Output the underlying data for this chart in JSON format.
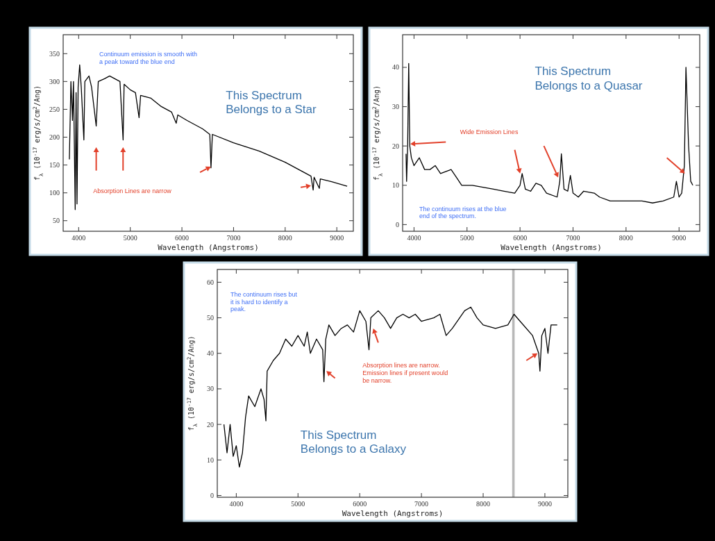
{
  "chart_data": [
    {
      "type": "line",
      "xlabel": "Wavelength (Angstroms)",
      "ylabel": "f$_{λ}$ (10$^{-17}$ erg/s/cm$^{2}$/Ang)",
      "xlim": [
        3700,
        9320
      ],
      "ylim": [
        31,
        384
      ],
      "xticks": [
        4000,
        5000,
        6000,
        7000,
        8000,
        9000
      ],
      "yticks": [
        50,
        100,
        150,
        200,
        250,
        300,
        350
      ],
      "x": [
        3820,
        3850,
        3880,
        3900,
        3933,
        3950,
        3968,
        3990,
        4020,
        4050,
        4101,
        4120,
        4200,
        4250,
        4340,
        4380,
        4500,
        4600,
        4700,
        4800,
        4861,
        4880,
        5000,
        5100,
        5170,
        5200,
        5400,
        5600,
        5800,
        5890,
        5920,
        6100,
        6400,
        6540,
        6563,
        6590,
        7000,
        7500,
        8000,
        8300,
        8500,
        8542,
        8560,
        8662,
        8680,
        8900,
        9200
      ],
      "series": [
        {
          "color": "#000000",
          "values": [
            160,
            300,
            230,
            300,
            70,
            280,
            80,
            290,
            330,
            290,
            195,
            300,
            310,
            290,
            220,
            300,
            305,
            310,
            305,
            300,
            195,
            295,
            285,
            280,
            235,
            275,
            270,
            255,
            245,
            225,
            240,
            230,
            215,
            205,
            145,
            205,
            190,
            175,
            155,
            140,
            130,
            105,
            128,
            108,
            125,
            120,
            112
          ]
        }
      ],
      "annotations": [
        "Continuum emission is smooth with\na peak toward the blue end",
        "This Spectrum\nBelongs to a Star",
        "Absorption Lines are narrow"
      ]
    },
    {
      "type": "line",
      "xlabel": "Wavelength (Angstroms)",
      "ylabel": "f$_{λ}$ (10$^{-17}$ erg/s/cm$^{2}$/Ang)",
      "xlim": [
        3785,
        9390
      ],
      "ylim": [
        -1.7,
        48.3
      ],
      "xticks": [
        4000,
        5000,
        6000,
        7000,
        8000,
        9000
      ],
      "yticks": [
        0,
        10,
        20,
        30,
        40
      ],
      "x": [
        3850,
        3860,
        3880,
        3900,
        3920,
        3950,
        4000,
        4100,
        4200,
        4300,
        4400,
        4500,
        4700,
        4800,
        4900,
        5100,
        5300,
        5500,
        5700,
        5900,
        6000,
        6040,
        6100,
        6200,
        6300,
        6400,
        6500,
        6700,
        6750,
        6780,
        6830,
        6900,
        6950,
        7000,
        7100,
        7200,
        7400,
        7500,
        7700,
        8000,
        8300,
        8500,
        8700,
        8900,
        8950,
        9000,
        9050,
        9100,
        9130,
        9180,
        9220,
        9260
      ],
      "series": [
        {
          "color": "#000000",
          "values": [
            18,
            11,
            20,
            41,
            20,
            17,
            15,
            17,
            14,
            14,
            15,
            13,
            14,
            12,
            10,
            10,
            9.5,
            9,
            8.5,
            8,
            10,
            13,
            9,
            8.5,
            10.5,
            10,
            8,
            7,
            11,
            18,
            9,
            8.5,
            12.5,
            8,
            7,
            8.5,
            8,
            7,
            6,
            6,
            6,
            5.5,
            6,
            7,
            11,
            7,
            8,
            15,
            40,
            20,
            11,
            10
          ]
        }
      ],
      "annotations": [
        "This Spectrum\nBelongs to a Quasar",
        "Wide Emission Lines",
        "The continuum rises at the blue\nend of the spectrum."
      ]
    },
    {
      "type": "line",
      "xlabel": "Wavelength (Angstroms)",
      "ylabel": "f$_{λ}$ (10$^{-17}$ erg/s/cm$^{2}$/Ang)",
      "xlim": [
        3692,
        9372
      ],
      "ylim": [
        -0.5,
        63.6
      ],
      "xticks": [
        4000,
        5000,
        6000,
        7000,
        8000,
        9000
      ],
      "yticks": [
        0,
        10,
        20,
        30,
        40,
        50,
        60
      ],
      "x": [
        3800,
        3850,
        3900,
        3950,
        4000,
        4050,
        4100,
        4150,
        4200,
        4300,
        4400,
        4450,
        4480,
        4500,
        4600,
        4700,
        4800,
        4900,
        5000,
        5100,
        5150,
        5200,
        5300,
        5400,
        5420,
        5450,
        5500,
        5600,
        5700,
        5800,
        5900,
        6000,
        6100,
        6150,
        6180,
        6300,
        6400,
        6500,
        6600,
        6700,
        6800,
        6900,
        7000,
        7200,
        7300,
        7400,
        7500,
        7700,
        7800,
        7900,
        8000,
        8200,
        8400,
        8500,
        8600,
        8800,
        8900,
        8920,
        8950,
        9000,
        9050,
        9100,
        9200
      ],
      "series": [
        {
          "color": "#000000",
          "values": [
            20,
            12,
            20,
            11,
            14,
            8,
            12,
            22,
            28,
            25,
            30,
            27,
            21,
            35,
            38,
            40,
            44,
            42,
            45,
            42,
            46,
            40,
            44,
            41,
            32,
            44,
            48,
            45,
            47,
            48,
            46,
            52,
            49,
            41,
            50,
            52,
            50,
            47,
            50,
            51,
            50,
            51,
            49,
            50,
            51,
            45,
            47,
            52,
            53,
            50,
            48,
            47,
            48,
            51,
            49,
            45,
            40,
            35,
            45,
            47,
            40,
            48,
            48
          ]
        }
      ],
      "bands": [
        {
          "axis": "x",
          "from": 8470,
          "to": 8510,
          "color": "#b8b8b8"
        }
      ],
      "annotations": [
        "The continuum rises but\nit is hard to identify a\npeak.",
        "Absorption lines are narrow.\nEmission lines if present would\nbe narrow.",
        "This Spectrum\nBelongs to a Galaxy"
      ]
    }
  ]
}
